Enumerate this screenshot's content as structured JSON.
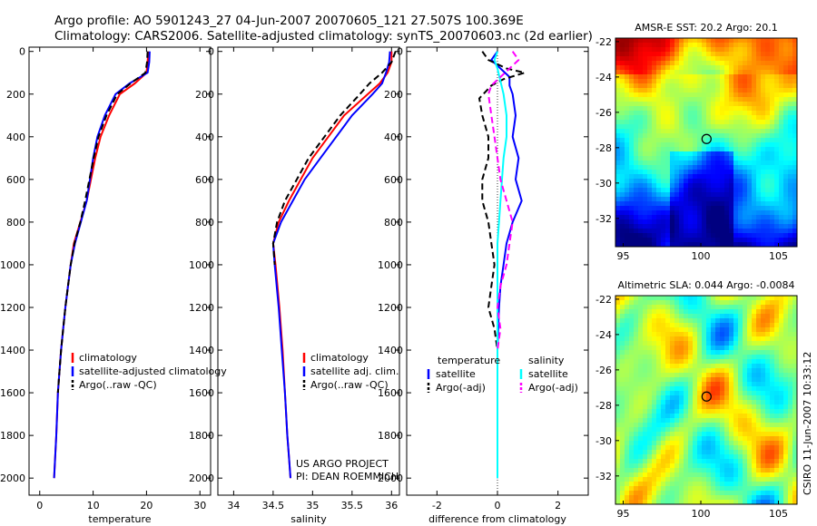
{
  "header": {
    "line1": "Argo profile: AO 5901243_27 04-Jun-2007 20070605_121 27.507S 100.369E",
    "line2": "Climatology: CARS2006. Satellite-adjusted climatology: synTS_20070603.nc (2d earlier)"
  },
  "colors": {
    "climatology": "#ff0000",
    "satellite": "#0000ff",
    "argo": "#000000",
    "salinity_satellite": "#00ffff",
    "argo_adj_salinity": "#ff00ff"
  },
  "chart_data": [
    {
      "type": "line",
      "id": "temperature",
      "xlabel": "temperature",
      "ylabel": "",
      "xlim": [
        -2,
        32
      ],
      "ylim": [
        2080,
        -20
      ],
      "y_inverted": true,
      "xticks": [
        0,
        10,
        20,
        30
      ],
      "yticks": [
        0,
        200,
        400,
        600,
        800,
        1000,
        1200,
        1400,
        1600,
        1800,
        2000
      ],
      "legend": [
        "climatology",
        "satellite-adjusted climatology",
        "Argo(..raw -QC)"
      ],
      "series": [
        {
          "name": "climatology",
          "color": "#ff0000",
          "dash": "",
          "x": [
            20.3,
            20.2,
            20.0,
            17.8,
            15.0,
            13.0,
            11.4,
            10.4,
            9.6,
            8.8,
            7.6,
            6.4,
            5.8,
            5.3,
            4.8,
            4.4,
            4.0,
            3.7,
            3.4,
            3.1,
            2.7
          ],
          "y": [
            0,
            50,
            100,
            150,
            200,
            300,
            400,
            500,
            600,
            700,
            800,
            900,
            1000,
            1100,
            1200,
            1300,
            1400,
            1500,
            1600,
            1800,
            2000
          ]
        },
        {
          "name": "satellite-adjusted climatology",
          "color": "#0000ff",
          "dash": "",
          "x": [
            20.6,
            20.5,
            20.2,
            16.8,
            14.2,
            12.2,
            10.8,
            10.0,
            9.4,
            8.8,
            7.7,
            6.6,
            5.8,
            5.3,
            4.8,
            4.4,
            4.0,
            3.7,
            3.4,
            3.1,
            2.7
          ],
          "y": [
            0,
            50,
            100,
            150,
            200,
            300,
            400,
            500,
            600,
            700,
            800,
            900,
            1000,
            1100,
            1200,
            1300,
            1400,
            1500,
            1600,
            1800,
            2000
          ]
        },
        {
          "name": "Argo(..raw -QC)",
          "color": "#000000",
          "dash": "7,4",
          "x": [
            20.2,
            20.1,
            19.8,
            17.0,
            14.5,
            12.5,
            11.0,
            10.1,
            9.3,
            8.5,
            7.6,
            6.5,
            5.8,
            5.3,
            4.8,
            4.4,
            4.0,
            3.7,
            3.4
          ],
          "y": [
            0,
            50,
            100,
            150,
            200,
            300,
            400,
            500,
            600,
            700,
            800,
            900,
            1000,
            1100,
            1200,
            1300,
            1400,
            1500,
            1600
          ]
        }
      ]
    },
    {
      "type": "line",
      "id": "salinity",
      "xlabel": "salinity",
      "ylabel": "",
      "xlim": [
        33.8,
        36.1
      ],
      "ylim": [
        2080,
        -20
      ],
      "y_inverted": true,
      "xticks": [
        34,
        34.5,
        35,
        35.5,
        36
      ],
      "yticks": [
        0,
        200,
        400,
        600,
        800,
        1000,
        1200,
        1400,
        1600,
        1800,
        2000
      ],
      "legend": [
        "climatology",
        "satellite adj. clim.",
        "Argo(..raw -QC)"
      ],
      "annotation": [
        "US ARGO PROJECT",
        "PI: DEAN ROEMMICH"
      ],
      "series": [
        {
          "name": "climatology",
          "color": "#ff0000",
          "dash": "",
          "x": [
            36.0,
            36.0,
            35.95,
            35.85,
            35.7,
            35.4,
            35.2,
            35.0,
            34.85,
            34.7,
            34.57,
            34.5,
            34.53,
            34.58,
            34.62,
            34.65,
            34.68,
            34.7,
            34.72
          ],
          "y": [
            0,
            50,
            100,
            150,
            200,
            300,
            400,
            500,
            600,
            700,
            800,
            900,
            1000,
            1200,
            1400,
            1600,
            1800,
            1900,
            2000
          ]
        },
        {
          "name": "satellite adj. clim.",
          "color": "#0000ff",
          "dash": "",
          "x": [
            35.98,
            35.97,
            35.93,
            35.88,
            35.76,
            35.5,
            35.3,
            35.1,
            34.9,
            34.75,
            34.6,
            34.5,
            34.52,
            34.57,
            34.61,
            34.65,
            34.68,
            34.7,
            34.72
          ],
          "y": [
            0,
            50,
            100,
            150,
            200,
            300,
            400,
            500,
            600,
            700,
            800,
            900,
            1000,
            1200,
            1400,
            1600,
            1800,
            1900,
            2000
          ]
        },
        {
          "name": "Argo(..raw -QC)",
          "color": "#000000",
          "dash": "7,4",
          "x": [
            36.05,
            36.0,
            35.88,
            35.72,
            35.6,
            35.35,
            35.15,
            34.95,
            34.8,
            34.65,
            34.55,
            34.5,
            34.52
          ],
          "y": [
            0,
            50,
            100,
            150,
            200,
            300,
            400,
            500,
            600,
            700,
            800,
            900,
            1000
          ]
        }
      ]
    },
    {
      "type": "line",
      "id": "difference",
      "xlabel": "difference from climatology",
      "ylabel": "",
      "xlim": [
        -3,
        3
      ],
      "ylim": [
        2080,
        -20
      ],
      "y_inverted": true,
      "xticks": [
        -2,
        0,
        2
      ],
      "yticks": [
        0,
        200,
        400,
        600,
        800,
        1000,
        1200,
        1400,
        1600,
        1800,
        2000
      ],
      "legend_headers": [
        "temperature",
        "salinity"
      ],
      "legend": [
        "satellite",
        "Argo(-adj)",
        "satellite",
        "Argo(-adj)"
      ],
      "series": [
        {
          "name": "temperature satellite",
          "color": "#0000ff",
          "dash": "",
          "x": [
            0.0,
            -0.2,
            0.1,
            0.4,
            0.4,
            0.5,
            0.6,
            0.5,
            0.7,
            0.6,
            0.8,
            0.5,
            0.3,
            0.2,
            0.1,
            0.05,
            0.0,
            0.0,
            0.0,
            0.0
          ],
          "y": [
            0,
            40,
            80,
            120,
            160,
            200,
            300,
            400,
            500,
            600,
            700,
            800,
            900,
            1000,
            1100,
            1200,
            1400,
            1600,
            1800,
            2000
          ]
        },
        {
          "name": "temperature Argo(-adj)",
          "color": "#000000",
          "dash": "7,4",
          "x": [
            -0.5,
            -0.3,
            0.3,
            0.9,
            0.2,
            -0.2,
            -0.6,
            -0.5,
            -0.3,
            -0.3,
            -0.5,
            -0.5,
            -0.3,
            -0.2,
            -0.1,
            -0.2,
            -0.3,
            -0.1,
            0.0
          ],
          "y": [
            0,
            40,
            80,
            100,
            130,
            160,
            220,
            300,
            400,
            500,
            600,
            700,
            800,
            900,
            1000,
            1100,
            1200,
            1300,
            1400
          ]
        },
        {
          "name": "salinity satellite",
          "color": "#00ffff",
          "dash": "",
          "x": [
            0.0,
            -0.1,
            0.0,
            0.2,
            0.3,
            0.3,
            0.2,
            0.15,
            0.1,
            0.05,
            0.0,
            0.0,
            0.0,
            0.0
          ],
          "y": [
            0,
            40,
            80,
            200,
            300,
            400,
            500,
            600,
            700,
            800,
            900,
            1000,
            1500,
            2000
          ]
        },
        {
          "name": "salinity Argo(-adj)",
          "color": "#ff00ff",
          "dash": "7,4",
          "x": [
            0.5,
            0.7,
            0.4,
            0.1,
            -0.2,
            -0.3,
            -0.2,
            -0.1,
            0.0,
            0.1,
            0.3,
            0.5,
            0.4,
            0.3,
            0.1,
            0.0,
            0.1,
            0.0
          ],
          "y": [
            0,
            40,
            80,
            120,
            160,
            200,
            300,
            400,
            500,
            600,
            700,
            800,
            900,
            1000,
            1100,
            1200,
            1300,
            1400
          ]
        }
      ]
    },
    {
      "type": "heatmap",
      "id": "sst-map",
      "title": "AMSR-E SST: 20.2  Argo: 20.1",
      "xlim": [
        94.5,
        106.2
      ],
      "ylim": [
        -33.6,
        -21.8
      ],
      "xticks": [
        95,
        100,
        105
      ],
      "yticks": [
        -22,
        -24,
        -26,
        -28,
        -30,
        -32
      ],
      "marker": {
        "lon": 100.369,
        "lat": -27.507
      }
    },
    {
      "type": "heatmap",
      "id": "sla-map",
      "title": "Altimetric SLA: 0.044  Argo: -0.0084",
      "xlim": [
        94.5,
        106.2
      ],
      "ylim": [
        -33.6,
        -21.8
      ],
      "xticks": [
        95,
        100,
        105
      ],
      "yticks": [
        -22,
        -24,
        -26,
        -28,
        -30,
        -32
      ],
      "marker": {
        "lon": 100.369,
        "lat": -27.507
      }
    }
  ],
  "footer": {
    "credit": "CSIRO 11-Jun-2007 10:33:12"
  }
}
